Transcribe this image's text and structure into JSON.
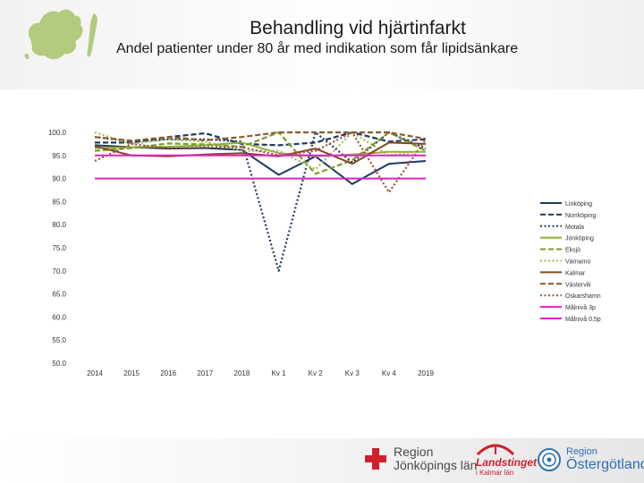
{
  "title": "Behandling vid hjärtinfarkt",
  "subtitle": "Andel patienter under 80 år med indikation som får lipidsänkare",
  "footer": {
    "logo1_line1": "Region",
    "logo1_line2": "Jönköpings län",
    "logo2_line1": "Landstinget",
    "logo2_line2": "i Kalmar län",
    "logo3_line1": "Region",
    "logo3_line2": "Östergötland"
  },
  "colors": {
    "target": "#e020c8",
    "linkoping": "#1f3864",
    "norrkoping": "#203864",
    "motala": "#1f3a5f",
    "jonkoping": "#8db03a",
    "eksjo": "#7f9a2a",
    "varnamo": "#9bbb59",
    "kalmar": "#7f4a1e",
    "vastervik": "#8c5a2b",
    "oskarshamn": "#a0522d"
  },
  "chart_data": {
    "type": "line",
    "title": "",
    "xlabel": "",
    "ylabel": "",
    "ylim": [
      50,
      100
    ],
    "ytick_labels": [
      "100.0",
      "95.0",
      "90.0",
      "85.0",
      "80.0",
      "75.0",
      "70.0",
      "65.0",
      "60.0",
      "55.0",
      "50.0"
    ],
    "categories": [
      "2014",
      "2015",
      "2016",
      "2017",
      "2018",
      "Kv 1",
      "Kv 2",
      "Kv 3",
      "Kv 4",
      "2019"
    ],
    "legend_position": "right",
    "series": [
      {
        "name": "Linköping",
        "color": "#1f3864",
        "style": "solid",
        "values": [
          97.2,
          96.8,
          96.5,
          96.6,
          96.2,
          90.8,
          94.8,
          88.8,
          93.2,
          93.8
        ]
      },
      {
        "name": "Norrköping",
        "color": "#203864",
        "style": "dashed",
        "values": [
          97.8,
          97.8,
          99.0,
          99.8,
          97.5,
          97.2,
          97.8,
          100.0,
          98.0,
          98.5
        ]
      },
      {
        "name": "Motala",
        "color": "#1f3a5f",
        "style": "dotted",
        "values": [
          99.0,
          98.0,
          98.5,
          98.5,
          98.0,
          70.0,
          100.0,
          93.5,
          100.0,
          96.5
        ]
      },
      {
        "name": "Jönköping",
        "color": "#8db03a",
        "style": "solid",
        "values": [
          96.6,
          96.8,
          96.9,
          97.2,
          97.8,
          95.5,
          94.8,
          95.2,
          95.8,
          95.8
        ]
      },
      {
        "name": "Eksjö",
        "color": "#7f9a2a",
        "style": "dashed",
        "values": [
          96.0,
          96.6,
          97.6,
          97.4,
          96.9,
          100.0,
          91.0,
          94.0,
          100.0,
          96.0
        ]
      },
      {
        "name": "Värnamo",
        "color": "#9bbb59",
        "style": "dotted",
        "values": [
          100.0,
          97.5,
          98.5,
          98.0,
          96.0,
          96.0,
          92.0,
          100.0,
          95.0,
          96.0
        ]
      },
      {
        "name": "Kalmar",
        "color": "#7f4a1e",
        "style": "solid",
        "values": [
          97.0,
          95.0,
          94.8,
          95.2,
          95.5,
          94.8,
          96.5,
          93.2,
          97.8,
          97.5
        ]
      },
      {
        "name": "Västervik",
        "color": "#8c5a2b",
        "style": "dashed",
        "values": [
          99.0,
          98.2,
          99.0,
          98.3,
          99.0,
          100.0,
          100.0,
          100.0,
          100.0,
          98.6
        ]
      },
      {
        "name": "Oskarshamn",
        "color": "#a0522d",
        "style": "dotted",
        "values": [
          93.8,
          97.5,
          96.5,
          96.8,
          96.8,
          95.0,
          96.0,
          100.0,
          87.0,
          98.5
        ]
      },
      {
        "name": "Målnivå 3p",
        "color": "#e020c8",
        "style": "solid",
        "values": [
          95,
          95,
          95,
          95,
          95,
          95,
          95,
          95,
          95,
          95
        ]
      },
      {
        "name": "Målnivå 0,5p",
        "color": "#e020c8",
        "style": "solid",
        "values": [
          90,
          90,
          90,
          90,
          90,
          90,
          90,
          90,
          90,
          90
        ]
      }
    ]
  }
}
